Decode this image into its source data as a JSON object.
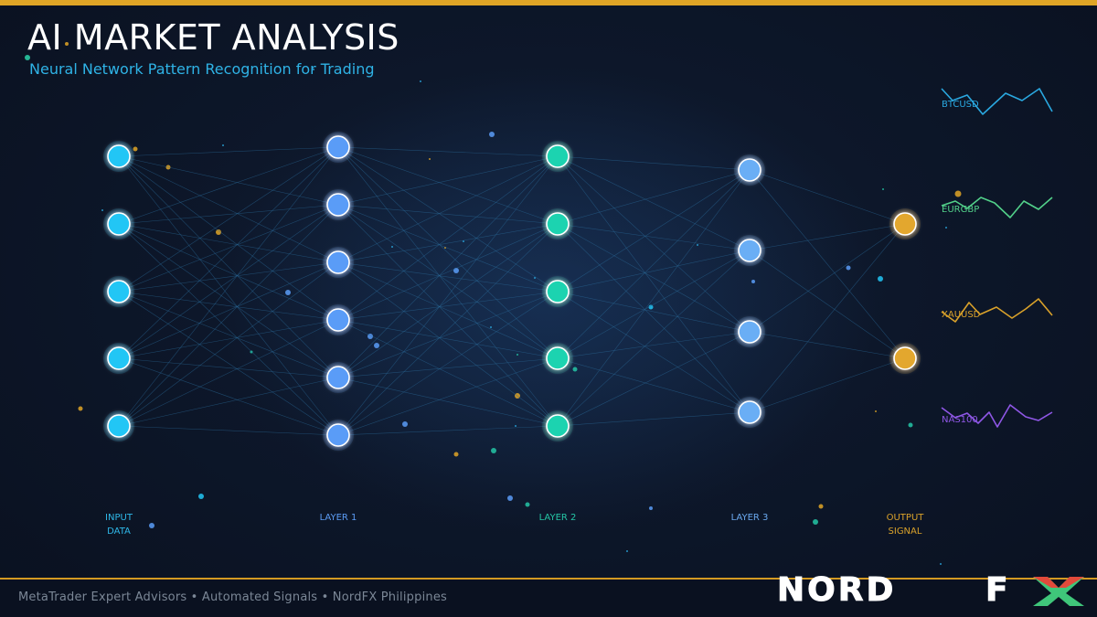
{
  "title": "AI MARKET ANALYSIS",
  "subtitle": "Neural Network Pattern Recognition for Trading",
  "layers": [
    {
      "label_line1": "INPUT",
      "label_line2": "DATA",
      "node_count": 5,
      "color": "#22c6f5"
    },
    {
      "label_line1": "LAYER 1",
      "label_line2": "",
      "node_count": 6,
      "color": "#5a9cf7"
    },
    {
      "label_line1": "LAYER 2",
      "label_line2": "",
      "node_count": 5,
      "color": "#1fd3b0"
    },
    {
      "label_line1": "LAYER 3",
      "label_line2": "",
      "node_count": 4,
      "color": "#6aaef5"
    },
    {
      "label_line1": "OUTPUT",
      "label_line2": "SIGNAL",
      "node_count": 2,
      "color": "#e3a72f"
    }
  ],
  "tickers": [
    {
      "symbol": "BTCUSD",
      "color": "#2aa8e0"
    },
    {
      "symbol": "EURGBP",
      "color": "#52d18a"
    },
    {
      "symbol": "XAUUSD",
      "color": "#d9a12a"
    },
    {
      "symbol": "NAS100",
      "color": "#8f57e6"
    }
  ],
  "footer": {
    "text": "MetaTrader Expert Advisors  •  Automated Signals  •  NordFX Philippines"
  },
  "logo": {
    "text_left": "NORD",
    "text_right": "FX"
  },
  "colors": {
    "accent": "#e0a526",
    "background": "#0b1322",
    "connection": "#2b6e9c"
  }
}
